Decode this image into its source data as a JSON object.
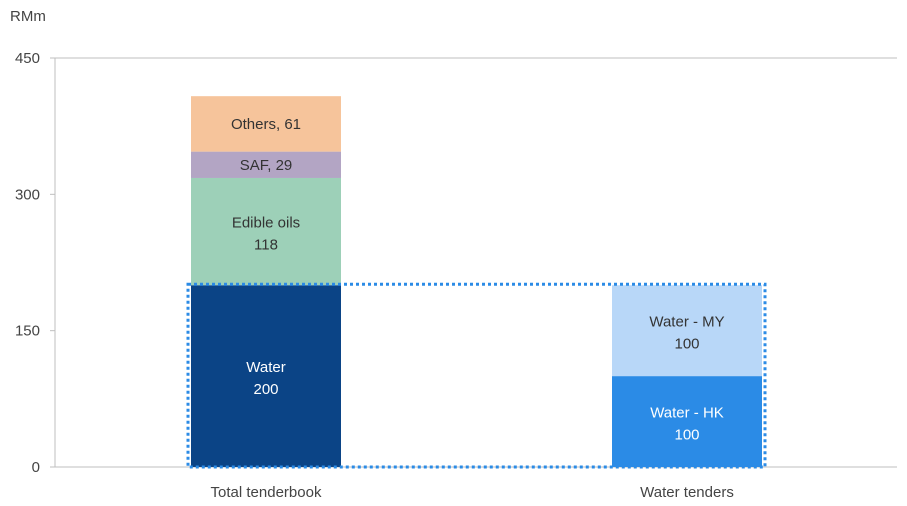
{
  "chart_data": {
    "type": "bar",
    "stacked": true,
    "unit_label": "RMm",
    "ylim": [
      0,
      450
    ],
    "yticks": [
      0,
      150,
      300,
      450
    ],
    "grid": false,
    "categories": [
      "Total tenderbook",
      "Water tenders"
    ],
    "stacks": [
      {
        "category": "Total tenderbook",
        "segments": [
          {
            "label": "Water",
            "value": 200,
            "value_label": "200",
            "two_line": true,
            "color": "#0b4486",
            "text_color": "#ffffff"
          },
          {
            "label": "Edible oils",
            "value": 118,
            "value_label": "118",
            "two_line": true,
            "color": "#9dd0b8",
            "text_color": "#333333"
          },
          {
            "label": "SAF",
            "value": 29,
            "value_label": "SAF, 29",
            "two_line": false,
            "color": "#b3a5c4",
            "text_color": "#333333"
          },
          {
            "label": "Others",
            "value": 61,
            "value_label": "Others, 61",
            "two_line": false,
            "color": "#f6c49b",
            "text_color": "#333333"
          }
        ]
      },
      {
        "category": "Water tenders",
        "segments": [
          {
            "label": "Water - HK",
            "value": 100,
            "value_label": "100",
            "two_line": true,
            "color": "#2b8be6",
            "text_color": "#ffffff"
          },
          {
            "label": "Water - MY",
            "value": 100,
            "value_label": "100",
            "two_line": true,
            "color": "#b8d7f8",
            "text_color": "#333333"
          }
        ]
      }
    ],
    "highlight_box": {
      "from": 0,
      "to": 200,
      "color": "#2b8be6"
    }
  }
}
